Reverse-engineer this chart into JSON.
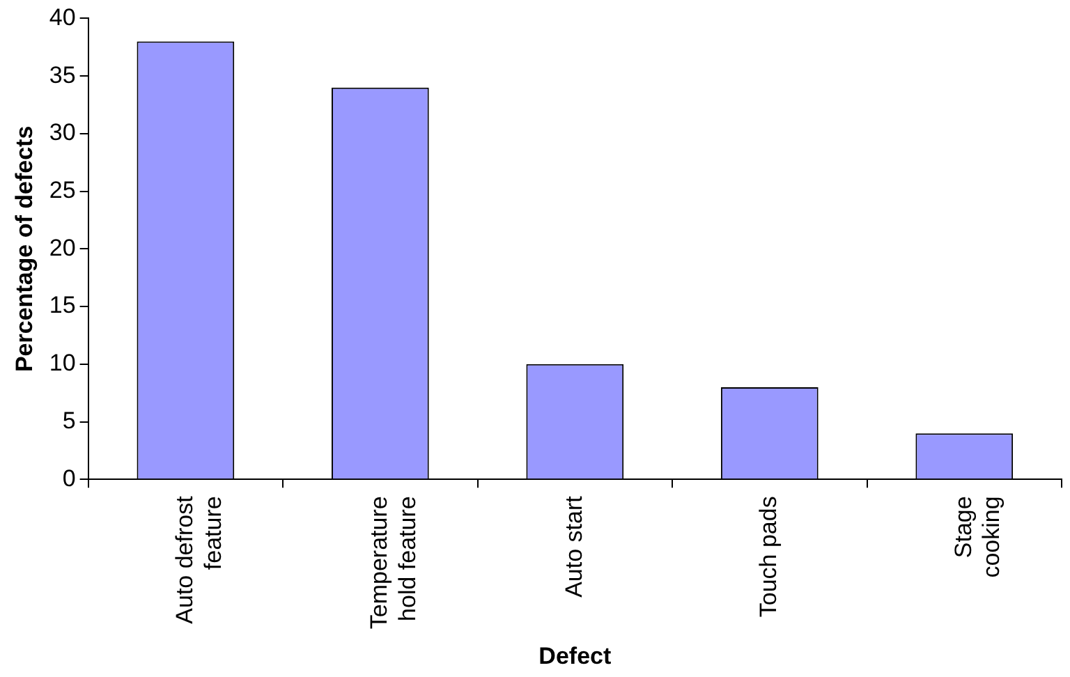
{
  "chart_data": {
    "type": "bar",
    "xlabel": "Defect",
    "ylabel": "Percentage of defects",
    "categories": [
      "Auto defrost\nfeature",
      "Temperature\nhold feature",
      "Auto start",
      "Touch pads",
      "Stage\ncooking"
    ],
    "values": [
      38,
      34,
      10,
      8,
      4
    ],
    "color": "#9999ff",
    "ylim": [
      0,
      40
    ],
    "yticks": [
      0,
      5,
      10,
      15,
      20,
      25,
      30,
      35,
      40
    ],
    "grid": false,
    "legend": false
  }
}
